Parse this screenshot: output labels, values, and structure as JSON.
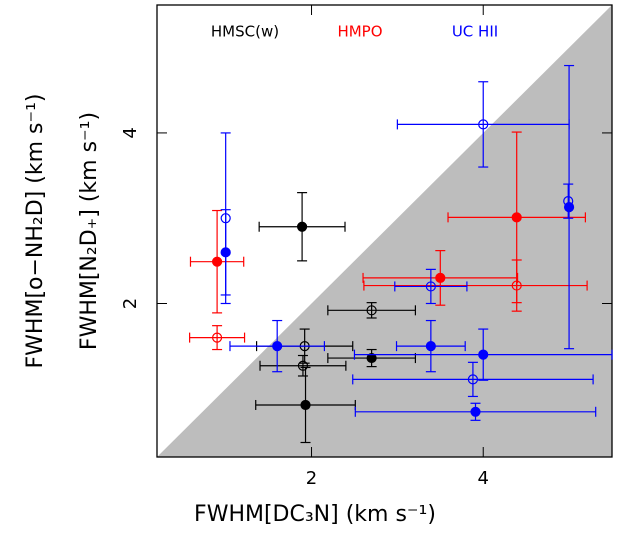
{
  "chart_data": {
    "type": "scatter",
    "xlabel": "FWHM[DC₃N]  (km s⁻¹)",
    "ylabel": [
      "FWHM[o−NH₂D]  (km s⁻¹)",
      "FWHM[N₂D₊]  (km s⁻¹)"
    ],
    "xlim": [
      0.2,
      5.5
    ],
    "ylim": [
      0.2,
      5.5
    ],
    "xticks": [
      2,
      4
    ],
    "yticks": [
      2,
      4
    ],
    "shade_below_diagonal": true,
    "shade_color": "#bdbdbd",
    "series": [
      {
        "name": "HMSC(w)",
        "color": "#000000",
        "x": [
          1.89,
          1.92,
          1.9,
          1.93,
          2.7,
          2.7
        ],
        "values": [
          2.9,
          1.5,
          1.27,
          0.81,
          1.92,
          1.36
        ],
        "xerr": [
          0.5,
          0.56,
          0.5,
          0.58,
          0.51,
          0.51
        ],
        "yerr": [
          0.4,
          0.2,
          0.12,
          0.44,
          0.09,
          0.1
        ],
        "filled": [
          true,
          false,
          false,
          true,
          false,
          true
        ]
      },
      {
        "name": "HMPO",
        "color": "#ff0000",
        "x": [
          0.9,
          0.9,
          3.5,
          4.39,
          4.39
        ],
        "values": [
          2.49,
          1.6,
          2.3,
          3.01,
          2.21
        ],
        "xerr": [
          0.31,
          0.32,
          0.9,
          0.8,
          [
            1.78,
            0.82
          ]
        ],
        "yerr": [
          0.6,
          0.14,
          0.32,
          1.0,
          0.3
        ],
        "filled": [
          true,
          false,
          true,
          true,
          false
        ]
      },
      {
        "name": "UC HII",
        "color": "#0000ff",
        "x": [
          1.0,
          1.0,
          1.6,
          3.39,
          3.39,
          4.0,
          4.0,
          3.88,
          3.91,
          4.99,
          5.0
        ],
        "values": [
          3.0,
          2.6,
          1.5,
          2.2,
          1.5,
          4.1,
          1.4,
          1.11,
          0.73,
          3.2,
          3.13
        ],
        "xerr": [
          0,
          0,
          0.55,
          0.42,
          0.4,
          1.0,
          1.5,
          1.4,
          1.4,
          0,
          0
        ],
        "yerr": [
          1.0,
          0.5,
          0.3,
          0.2,
          0.3,
          0.5,
          0.3,
          0.2,
          0.1,
          0.2,
          1.66
        ],
        "filled": [
          false,
          true,
          true,
          false,
          true,
          false,
          true,
          false,
          true,
          false,
          true
        ]
      }
    ]
  }
}
